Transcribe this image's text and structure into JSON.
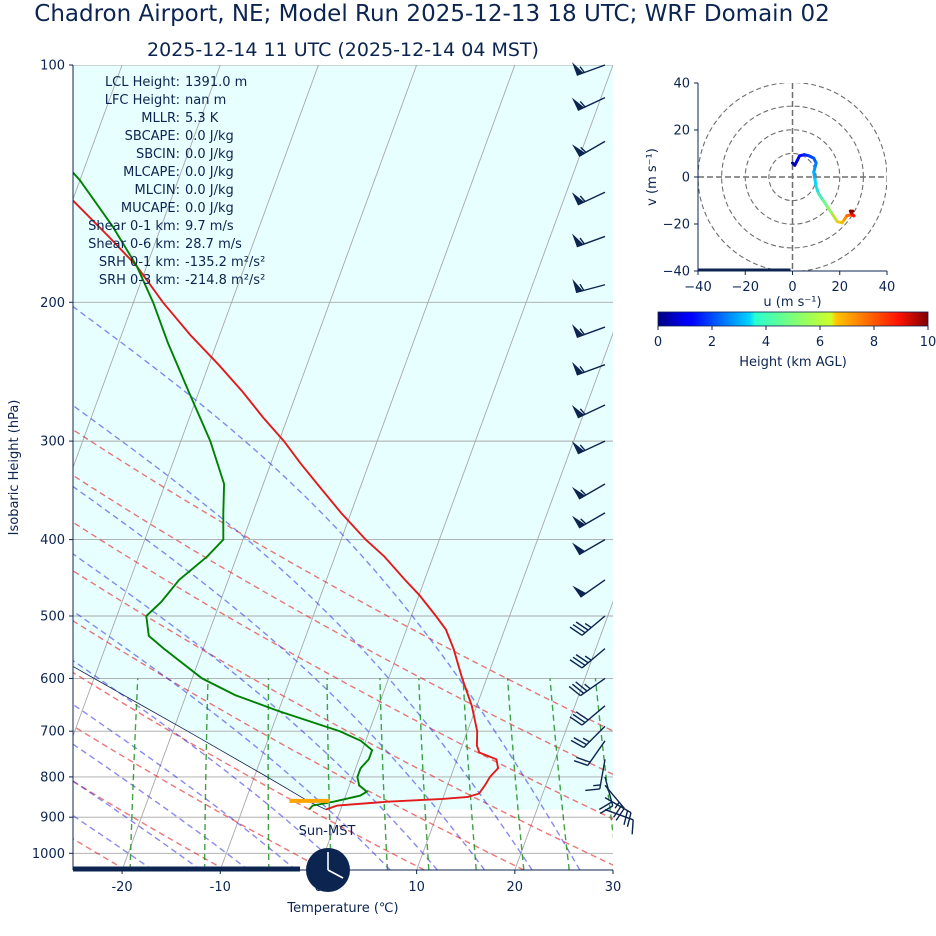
{
  "title": "Chadron Airport, NE; Model Run 2025-12-13 18 UTC; WRF Domain 02",
  "subtitle": "2025-12-14 11 UTC  (2025-12-14 04 MST)",
  "colors": {
    "text": "#0b2450",
    "temperature": "#e31a1c",
    "dewpoint": "#008000",
    "dry_adiabat": "#e31a1c",
    "moist_adiabat": "#2a2ae0",
    "mixing_ratio": "#138a13",
    "parcel_shade": "#e0ffff",
    "lcl_marker": "#ffa500"
  },
  "chart_data": [
    {
      "type": "line",
      "name": "skew-t",
      "xlabel": "Temperature (℃)",
      "ylabel": "Isobaric Height (hPa)",
      "xlim": [
        -25,
        30
      ],
      "ylim": [
        1050,
        100
      ],
      "y_scale": "log",
      "skew": 30,
      "x_ticks": [
        -20,
        -10,
        0,
        10,
        20,
        30
      ],
      "y_ticks": [
        100,
        200,
        300,
        400,
        500,
        600,
        700,
        800,
        900,
        1000
      ],
      "grid": true,
      "series": [
        {
          "name": "temperature",
          "points": [
            [
              880,
              -1.5
            ],
            [
              870,
              -0.5
            ],
            [
              860,
              4.5
            ],
            [
              853,
              10
            ],
            [
              848,
              12.5
            ],
            [
              840,
              13.5
            ],
            [
              820,
              13.8
            ],
            [
              800,
              14
            ],
            [
              780,
              14.5
            ],
            [
              760,
              14
            ],
            [
              745,
              12
            ],
            [
              730,
              11.5
            ],
            [
              700,
              11
            ],
            [
              650,
              9.5
            ],
            [
              600,
              7.5
            ],
            [
              550,
              5.5
            ],
            [
              520,
              4
            ],
            [
              500,
              2.5
            ],
            [
              470,
              0
            ],
            [
              450,
              -2
            ],
            [
              420,
              -5
            ],
            [
              400,
              -7.5
            ],
            [
              370,
              -11
            ],
            [
              340,
              -14.5
            ],
            [
              320,
              -17
            ],
            [
              300,
              -19.5
            ],
            [
              280,
              -22.5
            ],
            [
              260,
              -25.5
            ],
            [
              240,
              -29
            ],
            [
              220,
              -33
            ],
            [
              200,
              -37
            ],
            [
              180,
              -41
            ],
            [
              165,
              -45
            ],
            [
              150,
              -49.5
            ],
            [
              135,
              -54.5
            ],
            [
              120,
              -59
            ],
            [
              110,
              -62
            ],
            [
              100,
              -65
            ]
          ]
        },
        {
          "name": "dewpoint",
          "points": [
            [
              880,
              -3.2
            ],
            [
              870,
              -3
            ],
            [
              860,
              -1
            ],
            [
              845,
              1.5
            ],
            [
              835,
              2
            ],
            [
              820,
              1
            ],
            [
              800,
              0.5
            ],
            [
              780,
              0.5
            ],
            [
              760,
              1
            ],
            [
              740,
              1
            ],
            [
              720,
              -0.5
            ],
            [
              700,
              -3
            ],
            [
              660,
              -10
            ],
            [
              630,
              -15
            ],
            [
              600,
              -19
            ],
            [
              550,
              -24
            ],
            [
              530,
              -26
            ],
            [
              500,
              -27
            ],
            [
              480,
              -26
            ],
            [
              450,
              -25
            ],
            [
              420,
              -23
            ],
            [
              400,
              -22
            ],
            [
              370,
              -23
            ],
            [
              340,
              -24
            ],
            [
              300,
              -27
            ],
            [
              260,
              -31
            ],
            [
              225,
              -35
            ],
            [
              200,
              -38
            ],
            [
              180,
              -41
            ],
            [
              160,
              -45
            ],
            [
              140,
              -50
            ],
            [
              125,
              -55
            ],
            [
              115,
              -59
            ],
            [
              108,
              -62
            ],
            [
              100,
              -65
            ]
          ]
        }
      ],
      "parcel_profile": [
        [
          880,
          -1.5
        ],
        [
          860,
          -3.5
        ],
        [
          800,
          -8.7
        ],
        [
          700,
          -18.5
        ],
        [
          600,
          -30
        ],
        [
          500,
          -43.5
        ],
        [
          400,
          -60
        ],
        [
          300,
          -80
        ],
        [
          200,
          -110
        ],
        [
          100,
          -165
        ]
      ],
      "lcl": {
        "pressure": 858,
        "temperature": -3.5
      },
      "dry_adiabats_K": [
        240,
        250,
        260,
        270,
        280,
        290,
        300,
        310,
        320,
        330
      ],
      "moist_adiabats_C": [
        -20,
        -15,
        -10,
        -5,
        0,
        5,
        10,
        15,
        20,
        25
      ],
      "mixing_ratio_lines": [
        0.8,
        1.5,
        2.5,
        4,
        6,
        8,
        11,
        15,
        20,
        27
      ],
      "wind_barbs": [
        {
          "p": 880,
          "speed_kt": 9,
          "dir": 110
        },
        {
          "p": 850,
          "speed_kt": 20,
          "dir": 120
        },
        {
          "p": 820,
          "speed_kt": 25,
          "dir": 140
        },
        {
          "p": 800,
          "speed_kt": 18,
          "dir": 165
        },
        {
          "p": 760,
          "speed_kt": 15,
          "dir": 190
        },
        {
          "p": 720,
          "speed_kt": 22,
          "dir": 215
        },
        {
          "p": 690,
          "speed_kt": 25,
          "dir": 225
        },
        {
          "p": 650,
          "speed_kt": 30,
          "dir": 230
        },
        {
          "p": 600,
          "speed_kt": 35,
          "dir": 235
        },
        {
          "p": 550,
          "speed_kt": 35,
          "dir": 230
        },
        {
          "p": 500,
          "speed_kt": 35,
          "dir": 230
        },
        {
          "p": 450,
          "speed_kt": 50,
          "dir": 235
        },
        {
          "p": 400,
          "speed_kt": 50,
          "dir": 240
        },
        {
          "p": 370,
          "speed_kt": 55,
          "dir": 240
        },
        {
          "p": 340,
          "speed_kt": 55,
          "dir": 240
        },
        {
          "p": 300,
          "speed_kt": 55,
          "dir": 245
        },
        {
          "p": 270,
          "speed_kt": 55,
          "dir": 245
        },
        {
          "p": 240,
          "speed_kt": 55,
          "dir": 250
        },
        {
          "p": 215,
          "speed_kt": 55,
          "dir": 250
        },
        {
          "p": 190,
          "speed_kt": 55,
          "dir": 255
        },
        {
          "p": 165,
          "speed_kt": 55,
          "dir": 250
        },
        {
          "p": 145,
          "speed_kt": 55,
          "dir": 245
        },
        {
          "p": 125,
          "speed_kt": 55,
          "dir": 240
        },
        {
          "p": 110,
          "speed_kt": 55,
          "dir": 245
        },
        {
          "p": 100,
          "speed_kt": 55,
          "dir": 250
        }
      ],
      "annotations": {
        "sun_label": "Sun-MST"
      }
    },
    {
      "type": "scatter",
      "name": "hodograph",
      "xlabel": "u (m s⁻¹)",
      "ylabel": "v (m s⁻¹)",
      "xlim": [
        -40,
        40
      ],
      "ylim": [
        -40,
        40
      ],
      "x_ticks": [
        -40,
        -20,
        0,
        20,
        40
      ],
      "y_ticks": [
        40,
        20,
        0,
        -20,
        -40
      ],
      "rings": [
        10,
        20,
        30,
        40
      ],
      "points": [
        [
          0,
          6,
          0
        ],
        [
          1,
          5,
          0.3
        ],
        [
          2,
          7,
          0.6
        ],
        [
          3,
          9,
          0.9
        ],
        [
          5,
          9.5,
          1.2
        ],
        [
          7,
          9,
          1.5
        ],
        [
          9,
          8,
          1.8
        ],
        [
          10,
          6,
          2.1
        ],
        [
          9.5,
          4,
          2.4
        ],
        [
          9,
          2,
          2.7
        ],
        [
          9.5,
          -1,
          3
        ],
        [
          10,
          -4,
          3.4
        ],
        [
          11,
          -7,
          3.8
        ],
        [
          13,
          -10,
          4.3
        ],
        [
          15,
          -13,
          4.8
        ],
        [
          17,
          -16,
          5.3
        ],
        [
          19,
          -19,
          5.8
        ],
        [
          21,
          -19.5,
          6.3
        ],
        [
          22,
          -18,
          6.8
        ],
        [
          23,
          -16.5,
          7.3
        ],
        [
          25,
          -16,
          7.8
        ],
        [
          26,
          -16.5,
          8.4
        ],
        [
          25,
          -15.5,
          8.9
        ],
        [
          24.5,
          -14.5,
          9.4
        ],
        [
          25.5,
          -14.5,
          9.9
        ]
      ]
    },
    {
      "type": "heatmap",
      "name": "colorbar",
      "label": "Height (km AGL)",
      "range": [
        0,
        10
      ],
      "ticks": [
        0,
        2,
        4,
        6,
        8,
        10
      ]
    }
  ],
  "parameters": [
    {
      "label": "LCL Height:",
      "value": "1391.0 m"
    },
    {
      "label": "LFC Height:",
      "value": "nan m"
    },
    {
      "label": "MLLR:",
      "value": "5.3 K"
    },
    {
      "label": "SBCAPE:",
      "value": "0.0 J/kg"
    },
    {
      "label": "SBCIN:",
      "value": "0.0 J/kg"
    },
    {
      "label": "MLCAPE:",
      "value": "0.0 J/kg"
    },
    {
      "label": "MLCIN:",
      "value": "0.0 J/kg"
    },
    {
      "label": "MUCAPE:",
      "value": "0.0 J/kg"
    },
    {
      "label": "Shear 0-1 km:",
      "value": "9.7 m/s"
    },
    {
      "label": "Shear 0-6 km:",
      "value": "28.7 m/s"
    },
    {
      "label": "SRH 0-1 km:",
      "value": "-135.2 m²/s²"
    },
    {
      "label": "SRH 0-3 km:",
      "value": "-214.8 m²/s²"
    }
  ]
}
